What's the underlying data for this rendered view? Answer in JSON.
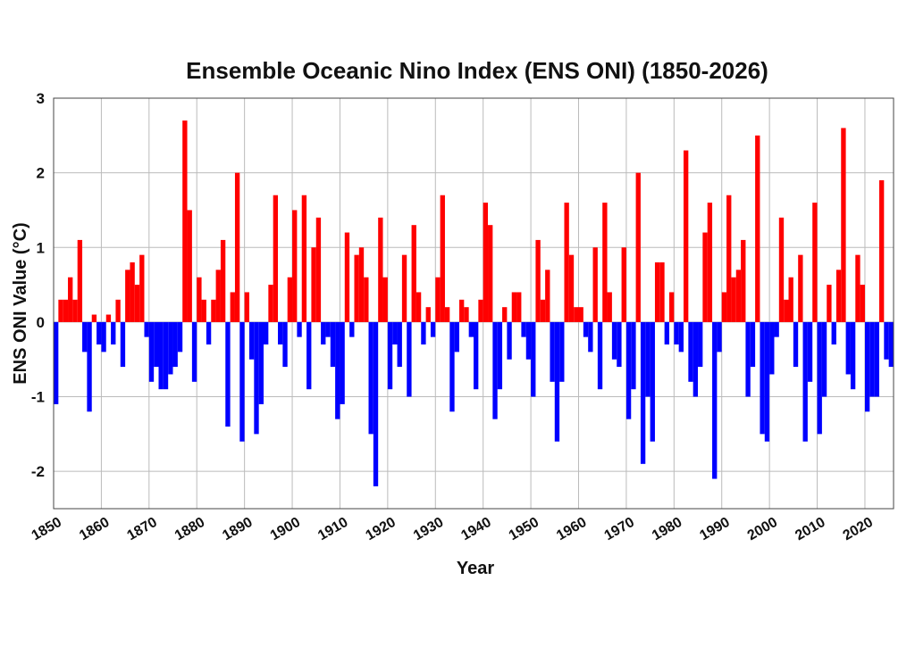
{
  "chart_data": {
    "type": "bar",
    "title": "Ensemble Oceanic Nino Index (ENS ONI) (1850-2026)",
    "xlabel": "Year",
    "ylabel": "ENS ONI Value (°C)",
    "positive_color": "#ff0000",
    "negative_color": "#0000ff",
    "grid": true,
    "xlim": [
      1850,
      2026
    ],
    "ylim": [
      -2.5,
      3
    ],
    "xticks": [
      1850,
      1860,
      1870,
      1880,
      1890,
      1900,
      1910,
      1920,
      1930,
      1940,
      1950,
      1960,
      1970,
      1980,
      1990,
      2000,
      2010,
      2020
    ],
    "yticks": [
      -2,
      -1,
      0,
      1,
      2,
      3
    ],
    "x": [
      1850,
      1851,
      1852,
      1853,
      1854,
      1855,
      1856,
      1857,
      1858,
      1859,
      1860,
      1861,
      1862,
      1863,
      1864,
      1865,
      1866,
      1867,
      1868,
      1869,
      1870,
      1871,
      1872,
      1873,
      1874,
      1875,
      1876,
      1877,
      1878,
      1879,
      1880,
      1881,
      1882,
      1883,
      1884,
      1885,
      1886,
      1887,
      1888,
      1889,
      1890,
      1891,
      1892,
      1893,
      1894,
      1895,
      1896,
      1897,
      1898,
      1899,
      1900,
      1901,
      1902,
      1903,
      1904,
      1905,
      1906,
      1907,
      1908,
      1909,
      1910,
      1911,
      1912,
      1913,
      1914,
      1915,
      1916,
      1917,
      1918,
      1919,
      1920,
      1921,
      1922,
      1923,
      1924,
      1925,
      1926,
      1927,
      1928,
      1929,
      1930,
      1931,
      1932,
      1933,
      1934,
      1935,
      1936,
      1937,
      1938,
      1939,
      1940,
      1941,
      1942,
      1943,
      1944,
      1945,
      1946,
      1947,
      1948,
      1949,
      1950,
      1951,
      1952,
      1953,
      1954,
      1955,
      1956,
      1957,
      1958,
      1959,
      1960,
      1961,
      1962,
      1963,
      1964,
      1965,
      1966,
      1967,
      1968,
      1969,
      1970,
      1971,
      1972,
      1973,
      1974,
      1975,
      1976,
      1977,
      1978,
      1979,
      1980,
      1981,
      1982,
      1983,
      1984,
      1985,
      1986,
      1987,
      1988,
      1989,
      1990,
      1991,
      1992,
      1993,
      1994,
      1995,
      1996,
      1997,
      1998,
      1999,
      2000,
      2001,
      2002,
      2003,
      2004,
      2005,
      2006,
      2007,
      2008,
      2009,
      2010,
      2011,
      2012,
      2013,
      2014,
      2015,
      2016,
      2017,
      2018,
      2019,
      2020,
      2021,
      2022,
      2023,
      2024,
      2025
    ],
    "values": [
      -1.1,
      0.3,
      0.3,
      0.6,
      0.3,
      1.1,
      -0.4,
      -1.2,
      0.1,
      -0.3,
      -0.4,
      0.1,
      -0.3,
      0.3,
      -0.6,
      0.7,
      0.8,
      0.5,
      0.9,
      -0.2,
      -0.8,
      -0.6,
      -0.9,
      -0.9,
      -0.7,
      -0.6,
      -0.4,
      2.7,
      1.5,
      -0.8,
      0.6,
      0.3,
      -0.3,
      0.3,
      0.7,
      1.1,
      -1.4,
      0.4,
      2.0,
      -1.6,
      0.4,
      -0.5,
      -1.5,
      -1.1,
      -0.3,
      0.5,
      1.7,
      -0.3,
      -0.6,
      0.6,
      1.5,
      -0.2,
      1.7,
      -0.9,
      1.0,
      1.4,
      -0.3,
      -0.2,
      -0.6,
      -1.3,
      -1.1,
      1.2,
      -0.2,
      0.9,
      1.0,
      0.6,
      -1.5,
      -2.2,
      1.4,
      0.6,
      -0.9,
      -0.3,
      -0.6,
      0.9,
      -1.0,
      1.3,
      0.4,
      -0.3,
      0.2,
      -0.2,
      0.6,
      1.7,
      0.2,
      -1.2,
      -0.4,
      0.3,
      0.2,
      -0.2,
      -0.9,
      0.3,
      1.6,
      1.3,
      -1.3,
      -0.9,
      0.2,
      -0.5,
      0.4,
      0.4,
      -0.2,
      -0.5,
      -1.0,
      1.1,
      0.3,
      0.7,
      -0.8,
      -1.6,
      -0.8,
      1.6,
      0.9,
      0.2,
      0.2,
      -0.2,
      -0.4,
      1.0,
      -0.9,
      1.6,
      0.4,
      -0.5,
      -0.6,
      1.0,
      -1.3,
      -0.9,
      2.0,
      -1.9,
      -1.0,
      -1.6,
      0.8,
      0.8,
      -0.3,
      0.4,
      -0.3,
      -0.4,
      2.3,
      -0.8,
      -1.0,
      -0.6,
      1.2,
      1.6,
      -2.1,
      -0.4,
      0.4,
      1.7,
      0.6,
      0.7,
      1.1,
      -1.0,
      -0.6,
      2.5,
      -1.5,
      -1.6,
      -0.7,
      -0.2,
      1.4,
      0.3,
      0.6,
      -0.6,
      0.9,
      -1.6,
      -0.8,
      1.6,
      -1.5,
      -1.0,
      0.5,
      -0.3,
      0.7,
      2.6,
      -0.7,
      -0.9,
      0.9,
      0.5,
      -1.2,
      -1.0,
      -1.0,
      1.9,
      -0.5,
      -0.6
    ]
  }
}
